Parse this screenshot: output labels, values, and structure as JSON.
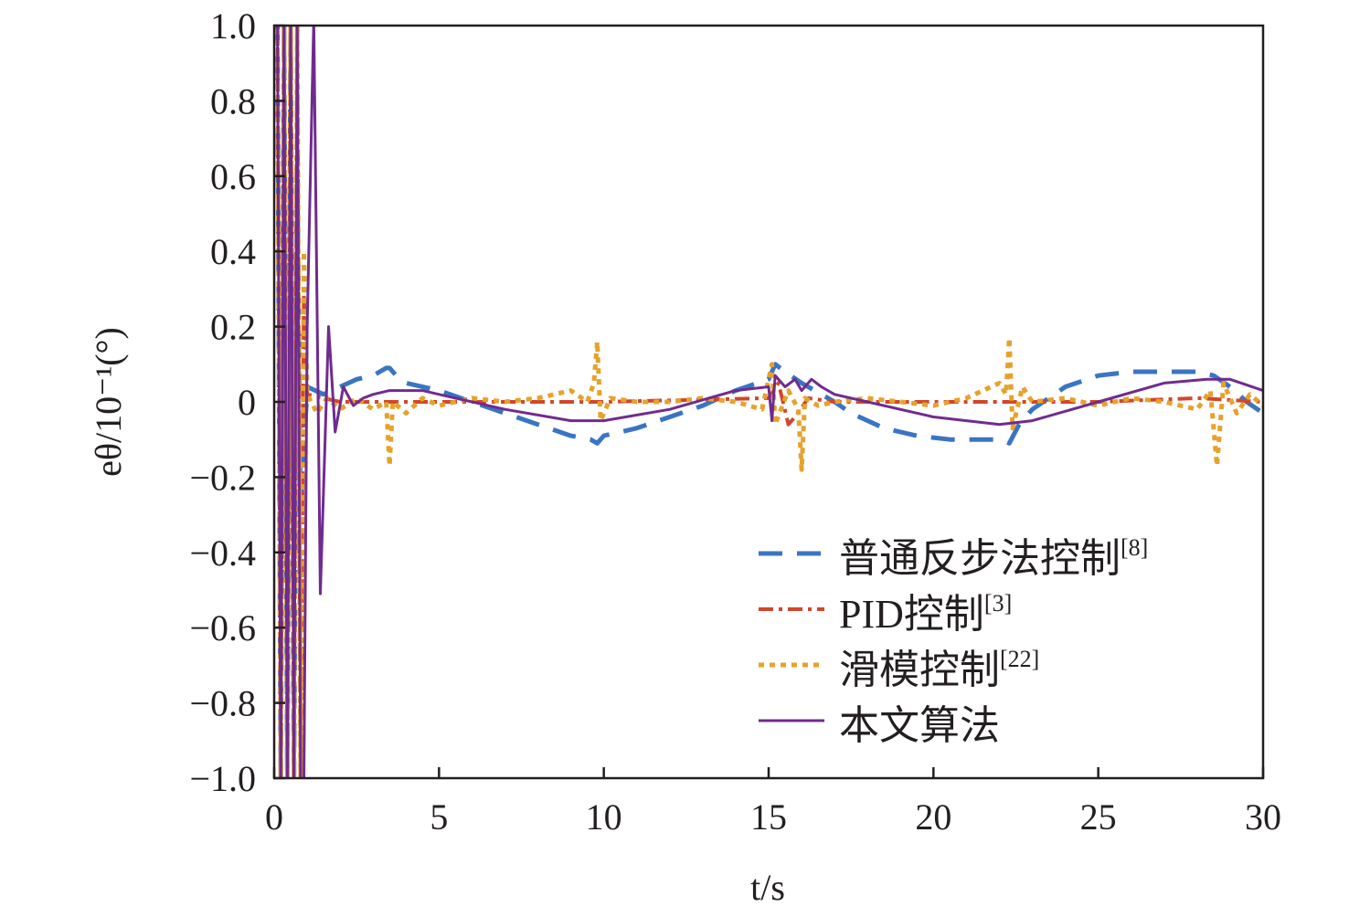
{
  "chart_data": {
    "type": "line",
    "xlabel": "t/s",
    "ylabel": "eθ/10⁻¹(°)",
    "xlim": [
      0,
      30
    ],
    "ylim": [
      -1.0,
      1.0
    ],
    "xticks": [
      "0",
      "5",
      "10",
      "15",
      "20",
      "25",
      "30"
    ],
    "yticks": [
      "1.0",
      "0.8",
      "0.6",
      "0.4",
      "0.2",
      "0",
      "−0.2",
      "−0.4",
      "−0.6",
      "−0.8",
      "−1.0"
    ],
    "grid": false,
    "legend_position": "bottom-right",
    "series": [
      {
        "name": "普通反步法控制[8]",
        "base": "普通反步法控制",
        "ref": "[8]",
        "color": "#3a75c4",
        "dash": "dashed",
        "x": [
          0.1,
          0.2,
          0.3,
          0.4,
          0.5,
          0.6,
          0.7,
          0.8,
          1.0,
          1.5,
          2.0,
          2.5,
          3.0,
          3.4,
          3.5,
          3.7,
          4.0,
          5.0,
          6.0,
          7.0,
          8.0,
          9.0,
          9.6,
          9.8,
          10.0,
          11.0,
          12.0,
          13.0,
          14.0,
          15.0,
          15.2,
          15.5,
          16.0,
          17.0,
          17.5,
          18.5,
          19.5,
          20.5,
          21.5,
          22.0,
          22.3,
          22.6,
          23.0,
          24.0,
          25.0,
          26.0,
          27.0,
          28.0,
          28.5,
          29.0,
          29.5,
          30.0
        ],
        "y": [
          1.5,
          -1.5,
          1.5,
          -1.5,
          1.5,
          -1.5,
          0.6,
          -0.3,
          0.04,
          0.02,
          0.04,
          0.06,
          0.07,
          0.09,
          0.09,
          0.07,
          0.05,
          0.03,
          0.0,
          -0.03,
          -0.06,
          -0.09,
          -0.1,
          -0.11,
          -0.09,
          -0.07,
          -0.04,
          -0.01,
          0.03,
          0.06,
          0.1,
          0.08,
          0.05,
          0.0,
          -0.03,
          -0.07,
          -0.09,
          -0.1,
          -0.1,
          -0.1,
          -0.11,
          -0.06,
          -0.02,
          0.04,
          0.07,
          0.08,
          0.08,
          0.08,
          0.07,
          0.04,
          0.0,
          -0.03
        ]
      },
      {
        "name": "PID控制[3]",
        "base": "PID控制",
        "ref": "[3]",
        "color": "#d2462a",
        "dash": "dashdot",
        "x": [
          0.1,
          0.2,
          0.3,
          0.4,
          0.5,
          0.6,
          0.7,
          0.8,
          0.9,
          1.0,
          2.0,
          5.0,
          10.0,
          15.0,
          15.3,
          15.6,
          15.8,
          16.2,
          17.0,
          20.0,
          25.0,
          28.0,
          30.0
        ],
        "y": [
          1.5,
          -1.5,
          1.5,
          -1.5,
          1.5,
          -1.5,
          1.5,
          -1.5,
          0.3,
          0.02,
          0.0,
          0.0,
          0.0,
          0.01,
          0.05,
          -0.06,
          -0.04,
          0.01,
          0.0,
          0.0,
          0.0,
          0.01,
          0.0
        ]
      },
      {
        "name": "滑模控制[22]",
        "base": "滑模控制",
        "ref": "[22]",
        "color": "#e6a22c",
        "dash": "dotted",
        "x": [
          0.1,
          0.2,
          0.3,
          0.4,
          0.5,
          0.6,
          0.7,
          0.8,
          0.9,
          1.0,
          1.3,
          1.6,
          2.0,
          2.5,
          3.0,
          3.4,
          3.5,
          3.6,
          4.0,
          4.5,
          5.0,
          6.0,
          7.0,
          8.0,
          8.5,
          9.0,
          9.5,
          9.7,
          9.8,
          9.9,
          10.2,
          11.0,
          12.0,
          13.0,
          14.0,
          14.8,
          15.1,
          15.2,
          15.6,
          15.9,
          16.0,
          16.1,
          16.5,
          17.0,
          18.0,
          19.0,
          20.0,
          21.0,
          21.5,
          22.0,
          22.2,
          22.3,
          22.4,
          22.7,
          23.0,
          24.0,
          25.0,
          26.0,
          27.0,
          28.0,
          28.4,
          28.6,
          28.8,
          29.2,
          29.6,
          30.0
        ],
        "y": [
          1.5,
          -1.5,
          1.5,
          -1.5,
          1.5,
          -1.5,
          1.5,
          -1.2,
          0.4,
          0.02,
          -0.03,
          0.01,
          -0.02,
          0.01,
          -0.02,
          0.0,
          -0.17,
          0.0,
          -0.03,
          0.01,
          -0.01,
          0.01,
          0.0,
          0.01,
          0.02,
          0.03,
          0.0,
          0.05,
          0.16,
          -0.05,
          0.01,
          0.0,
          0.0,
          0.01,
          0.0,
          -0.02,
          0.1,
          -0.06,
          0.03,
          -0.02,
          -0.18,
          0.01,
          -0.01,
          0.0,
          0.01,
          0.0,
          -0.01,
          0.01,
          0.03,
          0.05,
          0.02,
          0.17,
          -0.07,
          0.04,
          0.0,
          0.01,
          -0.01,
          0.01,
          0.0,
          -0.02,
          0.03,
          -0.17,
          0.05,
          -0.03,
          0.02,
          -0.01
        ]
      },
      {
        "name": "本文算法",
        "base": "本文算法",
        "ref": "",
        "color": "#702b8f",
        "dash": "solid",
        "x": [
          0.1,
          0.2,
          0.3,
          0.4,
          0.5,
          0.6,
          0.7,
          0.8,
          0.9,
          1.0,
          1.2,
          1.4,
          1.65,
          1.85,
          2.1,
          2.4,
          2.7,
          3.0,
          3.5,
          4.0,
          4.5,
          5.0,
          7.0,
          9.0,
          10.0,
          12.0,
          14.0,
          15.0,
          15.1,
          15.2,
          15.5,
          15.8,
          16.0,
          16.3,
          16.6,
          17.0,
          18.0,
          20.0,
          22.0,
          23.0,
          25.0,
          27.0,
          28.3,
          29.0,
          30.0
        ],
        "y": [
          1.5,
          -1.5,
          1.5,
          -1.5,
          1.5,
          -1.5,
          1.5,
          -1.5,
          -1.5,
          0.2,
          1.5,
          -0.51,
          0.2,
          -0.08,
          0.04,
          -0.01,
          0.01,
          0.02,
          0.03,
          0.03,
          0.03,
          0.02,
          -0.02,
          -0.05,
          -0.05,
          -0.02,
          0.03,
          0.04,
          -0.05,
          0.07,
          0.04,
          0.06,
          0.03,
          0.06,
          0.04,
          0.02,
          0.0,
          -0.04,
          -0.06,
          -0.05,
          0.0,
          0.05,
          0.06,
          0.06,
          0.03
        ]
      }
    ]
  }
}
